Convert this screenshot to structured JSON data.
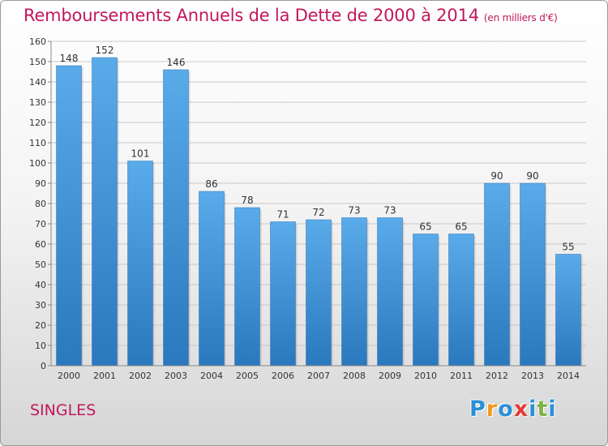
{
  "chart_data": {
    "type": "bar",
    "title": "Remboursements Annuels de la Dette de 2000 à 2014",
    "subtitle": "(en milliers d'€)",
    "categories": [
      "2000",
      "2001",
      "2002",
      "2003",
      "2004",
      "2005",
      "2006",
      "2007",
      "2008",
      "2009",
      "2010",
      "2011",
      "2012",
      "2013",
      "2014"
    ],
    "values": [
      148,
      152,
      101,
      146,
      86,
      78,
      71,
      72,
      73,
      73,
      65,
      65,
      90,
      90,
      55
    ],
    "ylim": [
      0,
      160
    ],
    "yticks": [
      0,
      10,
      20,
      30,
      40,
      50,
      60,
      70,
      80,
      90,
      100,
      110,
      120,
      130,
      140,
      150,
      160
    ],
    "xlabel": "",
    "ylabel": "",
    "grid": true,
    "bar_color": "#3a8fd4"
  },
  "commune": "SINGLES",
  "brand": {
    "letters": [
      "P",
      "r",
      "o",
      "x",
      "i",
      "t",
      "i"
    ],
    "colors": [
      "#2b8fd6",
      "#f39a1e",
      "#2b8fd6",
      "#e53935",
      "#2b8fd6",
      "#7cb342",
      "#2b8fd6"
    ]
  }
}
